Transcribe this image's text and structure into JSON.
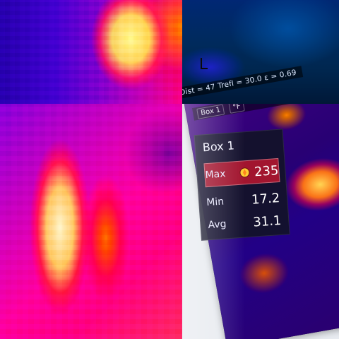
{
  "tiles": {
    "top_right": {
      "status_text": "Dist = 47  Trefl = 30.0  ε = 0.69"
    },
    "bottom_right": {
      "topbar": {
        "left_tag": "Box 1",
        "right_tag": "°F"
      },
      "panel": {
        "title": "Box 1",
        "rows": [
          {
            "label": "Max",
            "value": "235"
          },
          {
            "label": "Min",
            "value": "17.2"
          },
          {
            "label": "Avg",
            "value": "31.1"
          }
        ]
      }
    }
  },
  "icons": {
    "max_marker": "hot-spot-icon",
    "cursor": "crosshair-icon"
  },
  "colors": {
    "max_row_bg": "#a2152f",
    "panel_bg": "#121228"
  }
}
